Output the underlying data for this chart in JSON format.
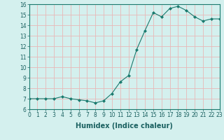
{
  "x": [
    0,
    1,
    2,
    3,
    4,
    5,
    6,
    7,
    8,
    9,
    10,
    11,
    12,
    13,
    14,
    15,
    16,
    17,
    18,
    19,
    20,
    21,
    22,
    23
  ],
  "y": [
    7.0,
    7.0,
    7.0,
    7.0,
    7.2,
    7.0,
    6.9,
    6.8,
    6.6,
    6.8,
    7.5,
    8.6,
    9.2,
    11.7,
    13.5,
    15.2,
    14.8,
    15.6,
    15.8,
    15.4,
    14.8,
    14.4,
    14.6,
    14.6
  ],
  "xlabel": "Humidex (Indice chaleur)",
  "ylim": [
    6,
    16
  ],
  "xlim": [
    0,
    23
  ],
  "yticks": [
    6,
    7,
    8,
    9,
    10,
    11,
    12,
    13,
    14,
    15,
    16
  ],
  "xticks": [
    0,
    1,
    2,
    3,
    4,
    5,
    6,
    7,
    8,
    9,
    10,
    11,
    12,
    13,
    14,
    15,
    16,
    17,
    18,
    19,
    20,
    21,
    22,
    23
  ],
  "line_color": "#1a7a6e",
  "marker": "D",
  "marker_size": 2.0,
  "bg_color": "#d4f0ee",
  "grid_color": "#e8b8b8",
  "tick_fontsize": 5.5,
  "label_fontsize": 7.0
}
